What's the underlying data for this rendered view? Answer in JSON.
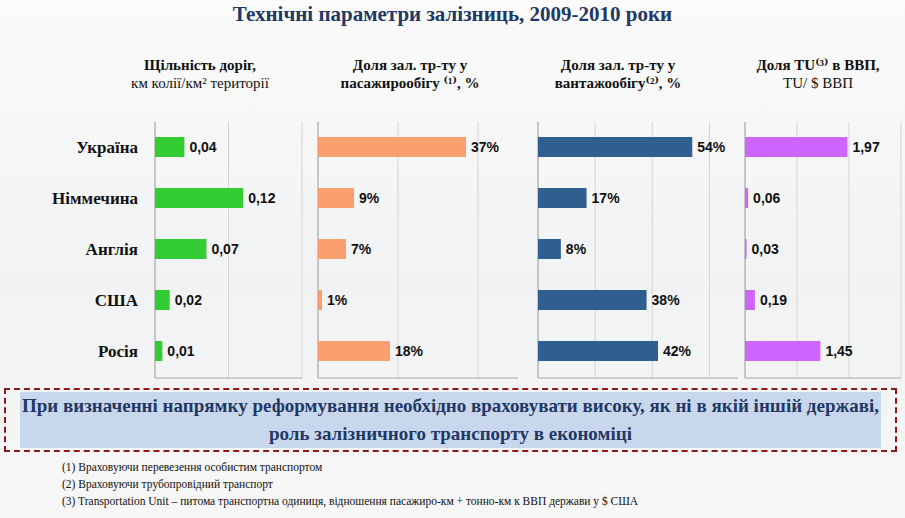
{
  "title": "Технічні параметри залізниць, 2009-2010 роки",
  "chart_data": [
    {
      "type": "bar",
      "orientation": "horizontal",
      "title": "Щільність доріг,",
      "subtitle": "км колії/км² території",
      "categories": [
        "Україна",
        "Німмечина",
        "Англія",
        "США",
        "Росія"
      ],
      "values": [
        0.04,
        0.12,
        0.07,
        0.02,
        0.01
      ],
      "value_labels": [
        "0,04",
        "0,12",
        "0,07",
        "0,02",
        "0,01"
      ],
      "color": "#33cc33",
      "xlim": [
        0,
        0.2
      ],
      "xticks": [
        0,
        0.1,
        0.2
      ],
      "grid": true,
      "tick_labels": false,
      "data_labels": true
    },
    {
      "type": "bar",
      "orientation": "horizontal",
      "title": "Доля зал. тр-ту у пасажирообігу ⁽¹⁾, %",
      "values": [
        37,
        9,
        7,
        1,
        18
      ],
      "value_labels": [
        "37%",
        "9%",
        "7%",
        "1%",
        "18%"
      ],
      "color": "#f9a06e",
      "xlim": [
        0,
        50
      ],
      "xticks": [
        0,
        20,
        40
      ],
      "grid": true,
      "tick_labels": false,
      "data_labels": true
    },
    {
      "type": "bar",
      "orientation": "horizontal",
      "title": "Доля зал. тр-ту у вантажообігу⁽²⁾, %",
      "values": [
        54,
        17,
        8,
        38,
        42
      ],
      "value_labels": [
        "54%",
        "17%",
        "8%",
        "38%",
        "42%"
      ],
      "color": "#2e5f8f",
      "xlim": [
        0,
        70
      ],
      "xticks": [
        0,
        20,
        40,
        60
      ],
      "grid": true,
      "tick_labels": false,
      "data_labels": true
    },
    {
      "type": "bar",
      "orientation": "horizontal",
      "title": "Доля TU⁽³⁾ в ВВП,",
      "subtitle": "TU/ $ ВВП",
      "values": [
        1.97,
        0.06,
        0.03,
        0.19,
        1.45
      ],
      "value_labels": [
        "1,97",
        "0,06",
        "0,03",
        "0,19",
        "1,45"
      ],
      "color": "#cc66ff",
      "xlim": [
        0,
        3
      ],
      "xticks": [
        0,
        1,
        2,
        3
      ],
      "grid": true,
      "tick_labels": false,
      "data_labels": true
    }
  ],
  "note": "При визначенні напрямку реформування необхідно враховувати високу, як ні в якій іншій державі, роль залізничного транспорту в економіці",
  "footnotes": [
    "(1) Враховуючи перевезення особистим транспортом",
    "(2) Враховуючи трубопровідний транспорт",
    "(3) Transportation Unit – питома транспортна одиниця, відношення пасажиро-км + тонно-км к ВВП держави у $ США"
  ]
}
